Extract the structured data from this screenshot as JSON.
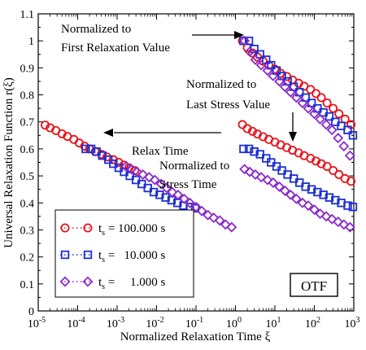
{
  "chart_data": {
    "type": "scatter",
    "xlabel": "Normalized Relaxation Time  ξ",
    "ylabel": "Universal Relaxation Function  r(ξ)",
    "x_scale": "log",
    "xlim": [
      1e-05,
      1000
    ],
    "ylim": [
      0,
      1.1
    ],
    "x_ticks": [
      {
        "v": 1e-05,
        "b": "10",
        "e": "-5"
      },
      {
        "v": 0.0001,
        "b": "10",
        "e": "-4"
      },
      {
        "v": 0.001,
        "b": "10",
        "e": "-3"
      },
      {
        "v": 0.01,
        "b": "10",
        "e": "-2"
      },
      {
        "v": 0.1,
        "b": "10",
        "e": "-1"
      },
      {
        "v": 1,
        "b": "10",
        "e": "0"
      },
      {
        "v": 10,
        "b": "10",
        "e": "1"
      },
      {
        "v": 100,
        "b": "10",
        "e": "2"
      },
      {
        "v": 1000,
        "b": "10",
        "e": "3"
      }
    ],
    "y_ticks": [
      {
        "v": 0,
        "t": "0"
      },
      {
        "v": 0.1,
        "t": "0.1"
      },
      {
        "v": 0.2,
        "t": "0.2"
      },
      {
        "v": 0.3,
        "t": "0.3"
      },
      {
        "v": 0.4,
        "t": "0.4"
      },
      {
        "v": 0.5,
        "t": "0.5"
      },
      {
        "v": 0.6,
        "t": "0.6"
      },
      {
        "v": 0.7,
        "t": "0.7"
      },
      {
        "v": 0.8,
        "t": "0.8"
      },
      {
        "v": 0.9,
        "t": "0.9"
      },
      {
        "v": 1,
        "t": "1"
      },
      {
        "v": 1.1,
        "t": "1.1"
      }
    ],
    "legend_position": "bottom-left",
    "legend": [
      {
        "ts": "t",
        "sub": "s",
        "text": "= 100.000 s",
        "marker": "circle",
        "color": "#e8131b"
      },
      {
        "ts": "t",
        "sub": "s",
        "text": "=   10.000 s",
        "marker": "square",
        "color": "#1c2fd4"
      },
      {
        "ts": "t",
        "sub": "s",
        "text": "=     1.000 s",
        "marker": "diamond",
        "color": "#8a2bc8"
      }
    ],
    "box_label": "OTF",
    "annotations": [
      {
        "lines": [
          "Normalized to",
          "First Relaxation Value"
        ]
      },
      {
        "lines": [
          "Normalized to",
          "Last Stress Value"
        ]
      },
      {
        "lines": [
          "Relax Time"
        ]
      },
      {
        "lines": [
          "Normalized to",
          "Stress Time"
        ]
      }
    ],
    "series": [
      {
        "ts": "100.000 s",
        "marker": "circle",
        "color": "#e8131b",
        "groups": [
          {
            "x": [
              1.5,
              2.0,
              2.7,
              3.6,
              5,
              7,
              10,
              14,
              20,
              28,
              40,
              55,
              80,
              110,
              150,
              210,
              300,
              420,
              600,
              850
            ],
            "y": [
              1.0,
              0.975,
              0.955,
              0.94,
              0.925,
              0.91,
              0.895,
              0.88,
              0.868,
              0.855,
              0.843,
              0.832,
              0.82,
              0.805,
              0.79,
              0.77,
              0.75,
              0.73,
              0.71,
              0.69
            ]
          },
          {
            "x": [
              1.5,
              2.0,
              2.7,
              3.6,
              5,
              7,
              10,
              14,
              20,
              28,
              40,
              55,
              80,
              110,
              150,
              210,
              300,
              420,
              600,
              850
            ],
            "y": [
              0.69,
              0.675,
              0.665,
              0.655,
              0.645,
              0.635,
              0.625,
              0.615,
              0.605,
              0.595,
              0.585,
              0.575,
              0.565,
              0.555,
              0.545,
              0.535,
              0.52,
              0.505,
              0.49,
              0.48
            ]
          },
          {
            "x": [
              1.5e-05,
              2e-05,
              2.8e-05,
              4e-05,
              5.5e-05,
              8e-05,
              0.00011,
              0.00015,
              0.0002,
              0.00028,
              0.0004,
              0.00055,
              0.0008,
              0.0011,
              0.0015,
              0.002,
              0.0028
            ],
            "y": [
              0.688,
              0.678,
              0.668,
              0.656,
              0.646,
              0.635,
              0.622,
              0.61,
              0.6,
              0.59,
              0.58,
              0.57,
              0.56,
              0.55,
              0.54,
              0.53,
              0.52
            ]
          }
        ]
      },
      {
        "ts": "10.000 s",
        "marker": "square",
        "color": "#1c2fd4",
        "groups": [
          {
            "x": [
              1.6,
              2.2,
              3.0,
              4.2,
              6,
              8,
              11,
              15,
              21,
              30,
              42,
              60,
              85,
              120,
              170,
              240,
              340,
              480,
              700,
              950
            ],
            "y": [
              1.0,
              1.0,
              0.97,
              0.95,
              0.93,
              0.91,
              0.89,
              0.87,
              0.85,
              0.83,
              0.81,
              0.79,
              0.77,
              0.75,
              0.735,
              0.72,
              0.7,
              0.685,
              0.67,
              0.65
            ]
          },
          {
            "x": [
              1.6,
              2.2,
              3.0,
              4.2,
              6,
              8,
              11,
              15,
              21,
              30,
              42,
              60,
              85,
              120,
              170,
              240,
              340,
              480,
              700,
              950
            ],
            "y": [
              0.6,
              0.6,
              0.59,
              0.58,
              0.565,
              0.55,
              0.535,
              0.52,
              0.505,
              0.49,
              0.475,
              0.46,
              0.45,
              0.44,
              0.43,
              0.42,
              0.41,
              0.4,
              0.39,
              0.385
            ]
          },
          {
            "x": [
              0.00016,
              0.00022,
              0.0003,
              0.00042,
              0.0006,
              0.0008,
              0.0011,
              0.0015,
              0.0021,
              0.003,
              0.0042,
              0.006,
              0.0085,
              0.012,
              0.017,
              0.024,
              0.034,
              0.048,
              0.07,
              0.095
            ],
            "y": [
              0.6,
              0.6,
              0.59,
              0.575,
              0.56,
              0.545,
              0.53,
              0.515,
              0.5,
              0.485,
              0.47,
              0.455,
              0.44,
              0.43,
              0.42,
              0.41,
              0.4,
              0.39,
              0.385,
              0.38
            ]
          }
        ]
      },
      {
        "ts": "1.000 s",
        "marker": "diamond",
        "color": "#8a2bc8",
        "groups": [
          {
            "x": [
              1.7,
              2.3,
              3.2,
              4.5,
              6.5,
              9,
              13,
              18,
              25,
              35,
              50,
              70,
              100,
              140,
              200,
              280,
              400,
              560,
              800
            ],
            "y": [
              1.0,
              0.96,
              0.93,
              0.91,
              0.89,
              0.87,
              0.85,
              0.83,
              0.81,
              0.79,
              0.77,
              0.75,
              0.73,
              0.71,
              0.69,
              0.67,
              0.64,
              0.61,
              0.575
            ]
          },
          {
            "x": [
              1.7,
              2.3,
              3.2,
              4.5,
              6.5,
              9,
              13,
              18,
              25,
              35,
              50,
              70,
              100,
              140,
              200,
              280,
              400,
              560,
              800
            ],
            "y": [
              0.525,
              0.515,
              0.505,
              0.495,
              0.485,
              0.475,
              0.46,
              0.445,
              0.43,
              0.415,
              0.4,
              0.39,
              0.375,
              0.36,
              0.35,
              0.34,
              0.33,
              0.32,
              0.31
            ]
          },
          {
            "x": [
              0.0017,
              0.0023,
              0.0032,
              0.0045,
              0.0065,
              0.009,
              0.013,
              0.018,
              0.025,
              0.035,
              0.05,
              0.07,
              0.1,
              0.14,
              0.2,
              0.28,
              0.4,
              0.56,
              0.8
            ],
            "y": [
              0.535,
              0.525,
              0.515,
              0.505,
              0.495,
              0.485,
              0.47,
              0.455,
              0.44,
              0.43,
              0.415,
              0.4,
              0.385,
              0.37,
              0.355,
              0.345,
              0.335,
              0.32,
              0.31
            ]
          }
        ]
      }
    ]
  }
}
